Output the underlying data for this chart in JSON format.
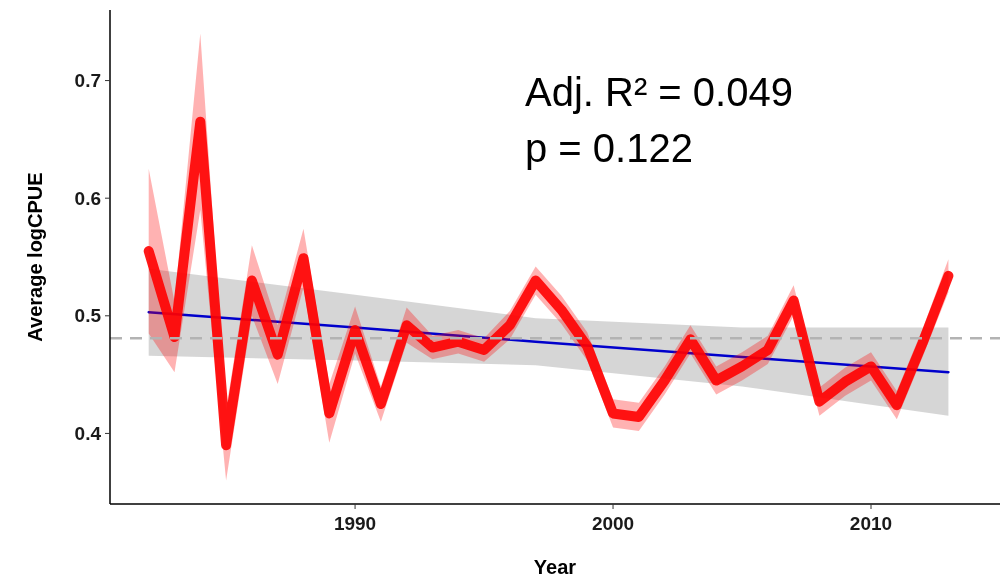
{
  "chart_data": {
    "type": "line",
    "xlabel": "Year",
    "ylabel": "Average logCPUE",
    "xlim": [
      1980.5,
      2015
    ],
    "xticks": [
      1990,
      2000,
      2010
    ],
    "ylim": [
      0.34,
      0.76
    ],
    "yticks": [
      0.4,
      0.5,
      0.6,
      0.7
    ],
    "grid": false,
    "marker": "none",
    "annotations": [
      "Adj. R² = 0.049",
      "p = 0.122"
    ],
    "ref_lines": [
      {
        "axis": "y",
        "value": 0.481,
        "color": "#b3b3b3",
        "line_style": "dashed"
      }
    ],
    "series": [
      {
        "color": "#ff0000",
        "x": [
          1982,
          1983,
          1984,
          1985,
          1986,
          1987,
          1988,
          1989,
          1990,
          1991,
          1992,
          1993,
          1994,
          1995,
          1996,
          1997,
          1998,
          1999,
          2000,
          2001,
          2002,
          2003,
          2004,
          2005,
          2006,
          2007,
          2008,
          2009,
          2010,
          2011,
          2012,
          2013
        ],
        "values": [
          0.555,
          0.482,
          0.665,
          0.39,
          0.53,
          0.467,
          0.549,
          0.417,
          0.488,
          0.425,
          0.492,
          0.473,
          0.478,
          0.471,
          0.492,
          0.53,
          0.505,
          0.474,
          0.417,
          0.414,
          0.445,
          0.48,
          0.445,
          0.457,
          0.471,
          0.513,
          0.427,
          0.444,
          0.457,
          0.424,
          0.477,
          0.534
        ],
        "lower": [
          0.485,
          0.452,
          0.59,
          0.36,
          0.5,
          0.442,
          0.524,
          0.392,
          0.468,
          0.41,
          0.477,
          0.463,
          0.468,
          0.461,
          0.48,
          0.518,
          0.493,
          0.462,
          0.405,
          0.402,
          0.433,
          0.468,
          0.433,
          0.445,
          0.459,
          0.5,
          0.415,
          0.432,
          0.445,
          0.412,
          0.465,
          0.52
        ],
        "upper": [
          0.625,
          0.512,
          0.74,
          0.42,
          0.56,
          0.492,
          0.574,
          0.442,
          0.508,
          0.44,
          0.507,
          0.483,
          0.488,
          0.481,
          0.504,
          0.542,
          0.517,
          0.486,
          0.429,
          0.426,
          0.457,
          0.492,
          0.457,
          0.469,
          0.483,
          0.526,
          0.439,
          0.456,
          0.469,
          0.436,
          0.489,
          0.548
        ]
      },
      {
        "color": "#0000cc",
        "x": [
          1982,
          1990,
          1997,
          2005,
          2013
        ],
        "values": [
          0.503,
          0.49,
          0.478,
          0.465,
          0.452
        ],
        "lower": [
          0.466,
          0.462,
          0.458,
          0.44,
          0.415
        ],
        "upper": [
          0.54,
          0.518,
          0.498,
          0.49,
          0.49
        ]
      }
    ]
  }
}
